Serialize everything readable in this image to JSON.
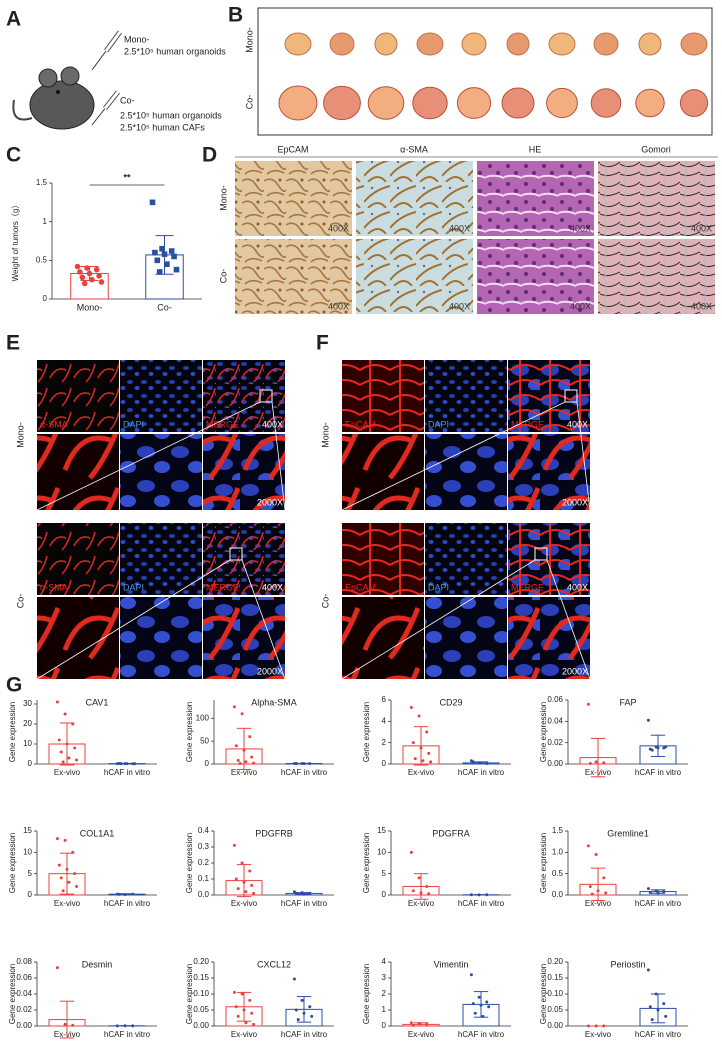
{
  "panel_a": {
    "label": "A",
    "mono": "Mono-",
    "mono_desc": "2.5*10⁵ human organoids",
    "co": "Co-",
    "co_desc": [
      "2.5*10⁵ human organoids",
      "2.5*10⁵ human CAFs"
    ]
  },
  "panel_b": {
    "label": "B",
    "rows": [
      "Mono-",
      "Co-"
    ]
  },
  "panel_c": {
    "label": "C"
  },
  "panel_d": {
    "label": "D",
    "columns": [
      "EpCAM",
      "α-SMA",
      "HE",
      "Gomori"
    ],
    "rows": [
      "Mono-",
      "Co-"
    ],
    "magnification": "400X"
  },
  "panel_e": {
    "label": "E",
    "rows": [
      "Mono-",
      "Co-"
    ],
    "channels": [
      "α-SMA",
      "DAPI",
      "MERGE"
    ],
    "magnifications": [
      "400X",
      "2000X"
    ]
  },
  "panel_f": {
    "label": "F",
    "rows": [
      "Mono-",
      "Co-"
    ],
    "channels": [
      "EpCAM",
      "DAPI",
      "MERGE"
    ],
    "magnifications": [
      "400X",
      "2000X"
    ]
  },
  "panel_g": {
    "label": "G"
  },
  "chart_data": [
    {
      "type": "bar",
      "ylabel": "Weight of tumors（g）",
      "annotation": "**",
      "categories": [
        "Mono-",
        "Co-"
      ],
      "values": [
        0.33,
        0.57
      ],
      "errors": [
        0.09,
        0.25
      ],
      "points": [
        [
          0.42,
          0.4,
          0.38,
          0.35,
          0.33,
          0.3,
          0.28,
          0.25,
          0.22,
          0.2
        ],
        [
          1.25,
          0.65,
          0.62,
          0.6,
          0.58,
          0.55,
          0.5,
          0.45,
          0.38,
          0.35
        ]
      ],
      "colors": [
        "#e8423f",
        "#2b4fa0"
      ],
      "markers": [
        "circle",
        "square"
      ],
      "ylim": [
        0,
        1.5
      ],
      "yticks": [
        0,
        0.5,
        1,
        1.5
      ]
    },
    {
      "type": "bar",
      "title": "CAV1",
      "ylabel": "Gene expression",
      "categories": [
        "Ex-vivo",
        "hCAF in vitro"
      ],
      "values": [
        10,
        0.2
      ],
      "errors": [
        10.5,
        0.1
      ],
      "points": [
        [
          31,
          25,
          20,
          12,
          10,
          8,
          6,
          3,
          2,
          1
        ],
        [
          0.2,
          0.2,
          0.1,
          0.3,
          0.2,
          0.1,
          0.2
        ]
      ],
      "colors": [
        "#e8423f",
        "#2b4fa0"
      ],
      "ylim": [
        0,
        32
      ],
      "yticks": [
        0,
        10,
        20,
        30
      ]
    },
    {
      "type": "bar",
      "title": "Alpha-SMA",
      "ylabel": "Gene expression",
      "categories": [
        "Ex-vivo",
        "hCAF in vitro"
      ],
      "values": [
        33,
        1
      ],
      "errors": [
        45,
        0.5
      ],
      "points": [
        [
          125,
          110,
          60,
          40,
          30,
          15,
          8,
          5,
          2,
          1
        ],
        [
          1,
          1.2,
          0.8,
          1,
          0.9
        ]
      ],
      "colors": [
        "#e8423f",
        "#2b4fa0"
      ],
      "ylim": [
        0,
        140
      ],
      "yticks": [
        0,
        50,
        100
      ]
    },
    {
      "type": "bar",
      "title": "CD29",
      "ylabel": "Gene expression",
      "categories": [
        "Ex-vivo",
        "hCAF in vitro"
      ],
      "values": [
        1.7,
        0.1
      ],
      "errors": [
        1.8,
        0.1
      ],
      "points": [
        [
          5.3,
          4.5,
          3,
          2,
          1.5,
          1,
          0.5,
          0.3,
          0.2
        ],
        [
          0.3,
          0.1,
          0.05,
          0.2,
          0.1
        ]
      ],
      "colors": [
        "#e8423f",
        "#2b4fa0"
      ],
      "ylim": [
        0,
        6
      ],
      "yticks": [
        0,
        2,
        4,
        6
      ]
    },
    {
      "type": "bar",
      "title": "FAP",
      "ylabel": "Gene expression",
      "categories": [
        "Ex-vivo",
        "hCAF in vitro"
      ],
      "values": [
        0.006,
        0.017
      ],
      "errors": [
        0.018,
        0.01
      ],
      "points": [
        [
          0.056,
          0.002,
          0.001,
          0.0005
        ],
        [
          0.041,
          0.016,
          0.015,
          0.014,
          0.015,
          0.016,
          0.013
        ]
      ],
      "colors": [
        "#e8423f",
        "#2b4fa0"
      ],
      "ylim": [
        0,
        0.06
      ],
      "yticks": [
        {
          "value": 0,
          "label": "0.00"
        },
        {
          "value": 0.02,
          "label": "0.02"
        },
        {
          "value": 0.04,
          "label": "0.04"
        },
        {
          "value": 0.06,
          "label": "0.06"
        }
      ]
    },
    {
      "type": "bar",
      "title": "COL1A1",
      "ylabel": "Gene expression",
      "categories": [
        "Ex-vivo",
        "hCAF in vitro"
      ],
      "values": [
        5,
        0.2
      ],
      "errors": [
        4.8,
        0.1
      ],
      "points": [
        [
          13.2,
          12.8,
          10,
          7,
          6,
          5,
          4,
          3,
          2,
          1
        ],
        [
          0.2,
          0.1,
          0.2,
          0.15
        ]
      ],
      "colors": [
        "#e8423f",
        "#2b4fa0"
      ],
      "ylim": [
        0,
        15
      ],
      "yticks": [
        0,
        5,
        10,
        15
      ]
    },
    {
      "type": "bar",
      "title": "PDGFRB",
      "ylabel": "Gene expression",
      "categories": [
        "Ex-vivo",
        "hCAF in vitro"
      ],
      "values": [
        0.09,
        0.01
      ],
      "errors": [
        0.1,
        0.005
      ],
      "points": [
        [
          0.31,
          0.2,
          0.15,
          0.1,
          0.08,
          0.06,
          0.04,
          0.02,
          0.01
        ],
        [
          0.02,
          0.015,
          0.01,
          0.01,
          0.005
        ]
      ],
      "colors": [
        "#e8423f",
        "#2b4fa0"
      ],
      "ylim": [
        0,
        0.4
      ],
      "yticks": [
        {
          "value": 0,
          "label": "0.0"
        },
        {
          "value": 0.1,
          "label": "0.1"
        },
        {
          "value": 0.2,
          "label": "0.2"
        },
        {
          "value": 0.3,
          "label": "0.3"
        },
        {
          "value": 0.4,
          "label": "0.4"
        }
      ]
    },
    {
      "type": "bar",
      "title": "PDGFRA",
      "ylabel": "Gene expression",
      "categories": [
        "Ex-vivo",
        "hCAF in vitro"
      ],
      "values": [
        2,
        0.05
      ],
      "errors": [
        3,
        0.02
      ],
      "points": [
        [
          10,
          4,
          2,
          1,
          0.5,
          0.3
        ],
        [
          0.05,
          0.04,
          0.06
        ]
      ],
      "colors": [
        "#e8423f",
        "#2b4fa0"
      ],
      "ylim": [
        0,
        15
      ],
      "yticks": [
        0,
        5,
        10,
        15
      ]
    },
    {
      "type": "bar",
      "title": "Gremline1",
      "ylabel": "Gene expression",
      "categories": [
        "Ex-vivo",
        "hCAF in vitro"
      ],
      "values": [
        0.25,
        0.08
      ],
      "errors": [
        0.38,
        0.04
      ],
      "points": [
        [
          1.15,
          0.95,
          0.4,
          0.2,
          0.1,
          0.05,
          0.02
        ],
        [
          0.15,
          0.1,
          0.08,
          0.06,
          0.05
        ]
      ],
      "colors": [
        "#e8423f",
        "#2b4fa0"
      ],
      "ylim": [
        0,
        1.5
      ],
      "yticks": [
        {
          "value": 0,
          "label": "0.0"
        },
        {
          "value": 0.5,
          "label": "0.5"
        },
        {
          "value": 1,
          "label": "1.0"
        },
        {
          "value": 1.5,
          "label": "1.5"
        }
      ]
    },
    {
      "type": "bar",
      "title": "Desmin",
      "ylabel": "Gene expression",
      "categories": [
        "Ex-vivo",
        "hCAF in vitro"
      ],
      "values": [
        0.008,
        0.0002
      ],
      "errors": [
        0.023,
        0.0001
      ],
      "points": [
        [
          0.073,
          0.002,
          0.001
        ],
        [
          0.0002,
          0.0003,
          0.0001
        ]
      ],
      "colors": [
        "#e8423f",
        "#2b4fa0"
      ],
      "ylim": [
        0,
        0.08
      ],
      "yticks": [
        {
          "value": 0,
          "label": "0.00"
        },
        {
          "value": 0.02,
          "label": "0.02"
        },
        {
          "value": 0.04,
          "label": "0.04"
        },
        {
          "value": 0.06,
          "label": "0.06"
        },
        {
          "value": 0.08,
          "label": "0.08"
        }
      ]
    },
    {
      "type": "bar",
      "title": "CXCL12",
      "ylabel": "Gene expression",
      "categories": [
        "Ex-vivo",
        "hCAF in vitro"
      ],
      "values": [
        0.06,
        0.052
      ],
      "errors": [
        0.045,
        0.04
      ],
      "points": [
        [
          0.105,
          0.1,
          0.08,
          0.06,
          0.05,
          0.04,
          0.03,
          0.01,
          0.005
        ],
        [
          0.147,
          0.08,
          0.06,
          0.05,
          0.04,
          0.03,
          0.02
        ]
      ],
      "colors": [
        "#e8423f",
        "#2b4fa0"
      ],
      "ylim": [
        0,
        0.2
      ],
      "yticks": [
        {
          "value": 0,
          "label": "0.00"
        },
        {
          "value": 0.05,
          "label": "0.05"
        },
        {
          "value": 0.1,
          "label": "0.10"
        },
        {
          "value": 0.15,
          "label": "0.15"
        },
        {
          "value": 0.2,
          "label": "0.20"
        }
      ]
    },
    {
      "type": "bar",
      "title": "Vimentin",
      "ylabel": "Gene expression",
      "categories": [
        "Ex-vivo",
        "hCAF in vitro"
      ],
      "values": [
        0.1,
        1.35
      ],
      "errors": [
        0.1,
        0.8
      ],
      "points": [
        [
          0.2,
          0.15,
          0.1,
          0.05
        ],
        [
          3.2,
          1.8,
          1.5,
          1.4,
          1.3,
          1.2,
          0.8,
          0.6
        ]
      ],
      "colors": [
        "#e8423f",
        "#2b4fa0"
      ],
      "ylim": [
        0,
        4
      ],
      "yticks": [
        0,
        1,
        2,
        3,
        4
      ]
    },
    {
      "type": "bar",
      "title": "Periostin",
      "ylabel": "Gene expression",
      "categories": [
        "Ex-vivo",
        "hCAF in vitro"
      ],
      "values": [
        0,
        0.055
      ],
      "errors": [
        0,
        0.045
      ],
      "points": [
        [
          0,
          0,
          0
        ],
        [
          0.175,
          0.1,
          0.07,
          0.06,
          0.05,
          0.03,
          0.02
        ]
      ],
      "colors": [
        "#e8423f",
        "#2b4fa0"
      ],
      "ylim": [
        0,
        0.2
      ],
      "yticks": [
        {
          "value": 0,
          "label": "0.00"
        },
        {
          "value": 0.05,
          "label": "0.05"
        },
        {
          "value": 0.1,
          "label": "0.10"
        },
        {
          "value": 0.15,
          "label": "0.15"
        },
        {
          "value": 0.2,
          "label": "0.20"
        }
      ]
    }
  ]
}
